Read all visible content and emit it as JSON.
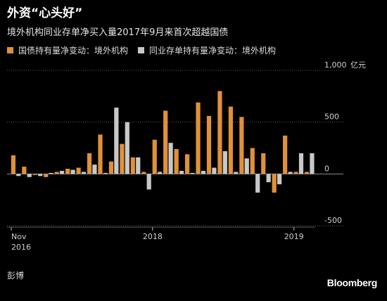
{
  "header": {
    "title": "外资“心头好”",
    "subtitle": "境外机构同业存单净买入量2017年9月来首次超越国债"
  },
  "footer": {
    "source": "彭博",
    "brand": "Bloomberg"
  },
  "colors": {
    "series_a": "#e0913a",
    "series_b": "#c8c8c8",
    "grid": "#5a5a5a",
    "zero": "#8a8a8a"
  },
  "chart_data": {
    "type": "bar",
    "unit": "亿元",
    "ylim": [
      -500,
      1000
    ],
    "yticks": [
      {
        "value": 1000,
        "label": "1,000"
      },
      {
        "value": 500,
        "label": "500"
      },
      {
        "value": 0,
        "label": "0"
      },
      {
        "value": -500,
        "label": "-500"
      }
    ],
    "x_labels": [
      {
        "index": 0,
        "lines": [
          "Nov",
          "2016"
        ]
      },
      {
        "index": 13,
        "lines": [
          "2018"
        ]
      },
      {
        "index": 26,
        "lines": [
          "2019"
        ]
      }
    ],
    "categories": [
      "2016-11",
      "2016-12",
      "2017-01",
      "2017-02",
      "2017-03",
      "2017-04",
      "2017-05",
      "2017-06",
      "2017-07",
      "2017-08",
      "2017-09",
      "2017-10",
      "2017-11",
      "2017-12",
      "2018-01",
      "2018-02",
      "2018-03",
      "2018-04",
      "2018-05",
      "2018-06",
      "2018-07",
      "2018-08",
      "2018-09",
      "2018-10",
      "2018-11",
      "2018-12",
      "2019-01",
      "2019-02"
    ],
    "series": [
      {
        "name": "国债持有量净变动：境外机构",
        "values": [
          180,
          70,
          -10,
          -30,
          20,
          50,
          60,
          200,
          380,
          120,
          290,
          160,
          20,
          330,
          610,
          240,
          190,
          690,
          560,
          800,
          650,
          550,
          250,
          200,
          -180,
          370,
          20,
          20
        ]
      },
      {
        "name": "同业存单持有量净变动：境外机构",
        "values": [
          -20,
          -30,
          -20,
          10,
          30,
          40,
          20,
          90,
          10,
          640,
          500,
          160,
          -150,
          20,
          300,
          30,
          10,
          30,
          60,
          220,
          20,
          150,
          -180,
          -80,
          -100,
          20,
          200,
          200
        ]
      }
    ]
  }
}
